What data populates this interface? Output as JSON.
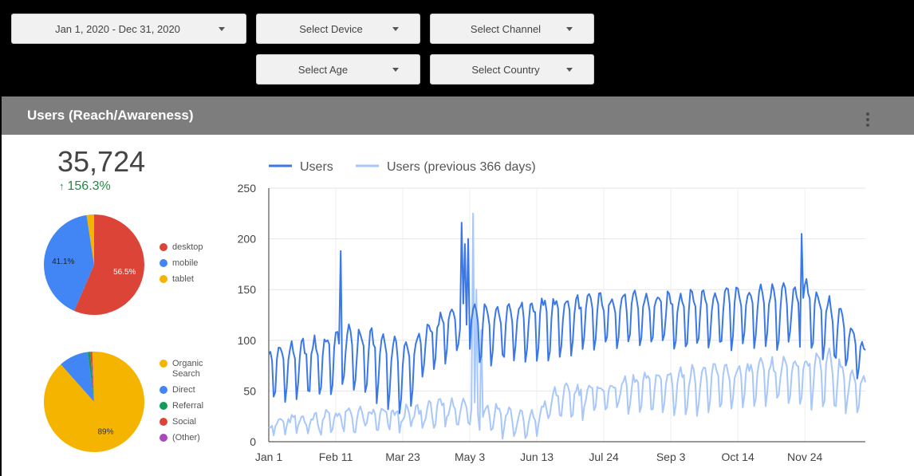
{
  "filters": {
    "date_range": "Jan 1, 2020 - Dec 31, 2020",
    "device": "Select Device",
    "channel": "Select Channel",
    "age": "Select Age",
    "country": "Select Country"
  },
  "panel": {
    "title": "Users (Reach/Awareness)",
    "menu_icon": "more-vert-icon"
  },
  "scorecard": {
    "value": "35,724",
    "delta": "156.3%",
    "delta_icon": "arrow-up-icon",
    "delta_color": "#1e8e3e"
  },
  "colors": {
    "desktop": "#db4437",
    "mobile": "#4285f4",
    "tablet": "#f4b400",
    "organic": "#f4b400",
    "direct": "#4285f4",
    "referral": "#0f9d58",
    "social": "#db4437",
    "other": "#ab47bc",
    "users_line": "#3b78e7",
    "prev_line": "#a8c7fa"
  },
  "chart_data": [
    {
      "type": "pie",
      "labels": [
        "desktop",
        "mobile",
        "tablet"
      ],
      "values": [
        56.5,
        41.1,
        2.4
      ],
      "slice_labels": [
        "56.5%",
        "41.1%",
        ""
      ],
      "legend_position": "right"
    },
    {
      "type": "pie",
      "labels": [
        "Organic Search",
        "Direct",
        "Referral",
        "Social",
        "(Other)"
      ],
      "values": [
        89.0,
        9.5,
        0.8,
        0.5,
        0.2
      ],
      "slice_labels": [
        "89%",
        "",
        "",
        "",
        ""
      ],
      "legend_position": "right"
    },
    {
      "type": "line",
      "series": [
        {
          "name": "Users",
          "color": "#3b78e7"
        },
        {
          "name": "Users (previous 366 days)",
          "color": "#a8c7fa"
        }
      ],
      "x_ticks": [
        "Jan 1",
        "Feb 11",
        "Mar 23",
        "May 3",
        "Jun 13",
        "Jul 24",
        "Sep 3",
        "Oct 14",
        "Nov 24"
      ],
      "y_ticks": [
        "0",
        "50",
        "100",
        "150",
        "200",
        "250"
      ],
      "ylim": [
        0,
        250
      ],
      "days": 366,
      "grid": true,
      "legend_position": "top",
      "users_weekly": [
        {
          "day": 0,
          "peak": 90,
          "trough": 45
        },
        {
          "day": 28,
          "peak": 100,
          "trough": 45
        },
        {
          "day": 49,
          "peak": 110,
          "trough": 55
        },
        {
          "day": 70,
          "peak": 105,
          "trough": 40
        },
        {
          "day": 84,
          "peak": 95,
          "trough": 30
        },
        {
          "day": 98,
          "peak": 115,
          "trough": 75
        },
        {
          "day": 112,
          "peak": 130,
          "trough": 85
        },
        {
          "day": 140,
          "peak": 135,
          "trough": 80
        },
        {
          "day": 175,
          "peak": 140,
          "trough": 85
        },
        {
          "day": 210,
          "peak": 145,
          "trough": 95
        },
        {
          "day": 245,
          "peak": 145,
          "trough": 95
        },
        {
          "day": 280,
          "peak": 150,
          "trough": 95
        },
        {
          "day": 308,
          "peak": 150,
          "trough": 95
        },
        {
          "day": 330,
          "peak": 155,
          "trough": 95
        },
        {
          "day": 350,
          "peak": 130,
          "trough": 75
        },
        {
          "day": 365,
          "peak": 95,
          "trough": 60
        }
      ],
      "users_spikes": [
        {
          "day": 44,
          "value": 188
        },
        {
          "day": 118,
          "value": 216
        },
        {
          "day": 120,
          "value": 195
        },
        {
          "day": 122,
          "value": 200
        },
        {
          "day": 326,
          "value": 205
        }
      ],
      "prev_weekly": [
        {
          "day": 0,
          "peak": 20,
          "trough": 8
        },
        {
          "day": 40,
          "peak": 30,
          "trough": 10
        },
        {
          "day": 80,
          "peak": 30,
          "trough": 12
        },
        {
          "day": 115,
          "peak": 40,
          "trough": 18
        },
        {
          "day": 140,
          "peak": 35,
          "trough": 10
        },
        {
          "day": 150,
          "peak": 30,
          "trough": 5
        },
        {
          "day": 160,
          "peak": 25,
          "trough": 0
        },
        {
          "day": 175,
          "peak": 50,
          "trough": 25
        },
        {
          "day": 210,
          "peak": 60,
          "trough": 28
        },
        {
          "day": 250,
          "peak": 70,
          "trough": 30
        },
        {
          "day": 290,
          "peak": 75,
          "trough": 35
        },
        {
          "day": 320,
          "peak": 80,
          "trough": 40
        },
        {
          "day": 340,
          "peak": 90,
          "trough": 35
        },
        {
          "day": 365,
          "peak": 60,
          "trough": 25
        }
      ],
      "prev_spikes": [
        {
          "day": 125,
          "value": 225
        },
        {
          "day": 127,
          "value": 150
        },
        {
          "day": 130,
          "value": 110
        }
      ]
    }
  ]
}
